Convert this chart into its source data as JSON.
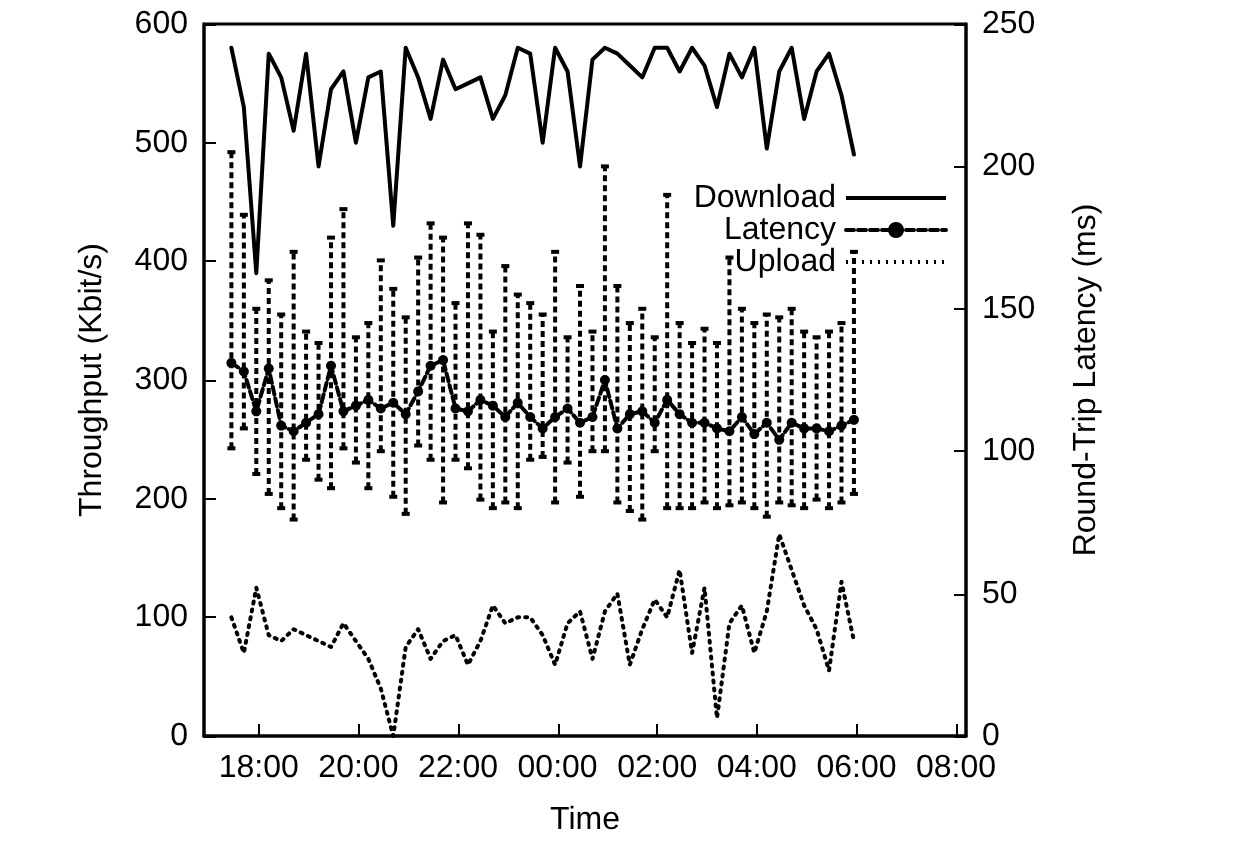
{
  "chart_data": {
    "type": "line",
    "xlabel": "Time",
    "ylabel": "Throughput (Kbit/s)",
    "y2label": "Round-Trip Latency (ms)",
    "x": [
      "2000-01-01T17:27",
      "2000-01-01T17:42",
      "2000-01-01T17:57",
      "2000-01-01T18:12",
      "2000-01-01T18:27",
      "2000-01-01T18:42",
      "2000-01-01T18:57",
      "2000-01-01T19:12",
      "2000-01-01T19:27",
      "2000-01-01T19:42",
      "2000-01-01T19:57",
      "2000-01-01T20:12",
      "2000-01-01T20:27",
      "2000-01-01T20:42",
      "2000-01-01T20:57",
      "2000-01-01T21:12",
      "2000-01-01T21:27",
      "2000-01-01T21:42",
      "2000-01-01T21:57",
      "2000-01-01T22:12",
      "2000-01-01T22:27",
      "2000-01-01T22:42",
      "2000-01-01T22:57",
      "2000-01-01T23:12",
      "2000-01-01T23:27",
      "2000-01-01T23:42",
      "2000-01-01T23:57",
      "2000-01-02T00:12",
      "2000-01-02T00:27",
      "2000-01-02T00:42",
      "2000-01-02T00:57",
      "2000-01-02T01:12",
      "2000-01-02T01:27",
      "2000-01-02T01:42",
      "2000-01-02T01:57",
      "2000-01-02T02:12",
      "2000-01-02T02:27",
      "2000-01-02T02:42",
      "2000-01-02T02:57",
      "2000-01-02T03:12",
      "2000-01-02T03:27",
      "2000-01-02T03:42",
      "2000-01-02T03:57",
      "2000-01-02T04:12",
      "2000-01-02T04:27",
      "2000-01-02T04:42",
      "2000-01-02T04:57",
      "2000-01-02T05:12",
      "2000-01-02T05:27",
      "2000-01-02T05:42",
      "2000-01-02T05:57"
    ],
    "series": [
      {
        "name": "Download",
        "color": "#000000",
        "line_style": "solid",
        "marker": "none",
        "values": [
          580,
          530,
          390,
          575,
          555,
          510,
          575,
          480,
          545,
          560,
          500,
          555,
          560,
          430,
          580,
          555,
          520,
          570,
          545,
          550,
          555,
          520,
          540,
          580,
          575,
          500,
          580,
          560,
          480,
          570,
          580,
          575,
          565,
          555,
          580,
          580,
          560,
          580,
          565,
          530,
          575,
          555,
          580,
          495,
          560,
          580,
          520,
          560,
          575,
          540,
          490
        ]
      },
      {
        "name": "Latency",
        "color": "#000000",
        "axis": "y2",
        "line_style": "dashed",
        "marker": "circle",
        "values": [
          131,
          128,
          114,
          129,
          109,
          107,
          110,
          113,
          130,
          114,
          116,
          118,
          115,
          117,
          113,
          121,
          130,
          132,
          115,
          114,
          118,
          116,
          112,
          117,
          112,
          108,
          112,
          115,
          110,
          112,
          125,
          108,
          113,
          114,
          110,
          118,
          113,
          110,
          110,
          108,
          107,
          112,
          106,
          110,
          104,
          110,
          108,
          108,
          107,
          109,
          111
        ],
        "errors": [
          [
            101,
            205
          ],
          [
            108,
            183
          ],
          [
            92,
            150
          ],
          [
            85,
            160
          ],
          [
            80,
            148
          ],
          [
            76,
            170
          ],
          [
            97,
            142
          ],
          [
            90,
            138
          ],
          [
            87,
            175
          ],
          [
            101,
            185
          ],
          [
            96,
            140
          ],
          [
            87,
            145
          ],
          [
            100,
            167
          ],
          [
            84,
            157
          ],
          [
            78,
            147
          ],
          [
            102,
            168
          ],
          [
            97,
            180
          ],
          [
            82,
            175
          ],
          [
            97,
            152
          ],
          [
            94,
            180
          ],
          [
            83,
            176
          ],
          [
            80,
            142
          ],
          [
            82,
            165
          ],
          [
            80,
            155
          ],
          [
            97,
            152
          ],
          [
            98,
            148
          ],
          [
            82,
            170
          ],
          [
            96,
            140
          ],
          [
            84,
            158
          ],
          [
            100,
            142
          ],
          [
            100,
            200
          ],
          [
            82,
            158
          ],
          [
            79,
            145
          ],
          [
            76,
            150
          ],
          [
            100,
            140
          ],
          [
            80,
            190
          ],
          [
            80,
            145
          ],
          [
            80,
            138
          ],
          [
            82,
            143
          ],
          [
            80,
            138
          ],
          [
            81,
            168
          ],
          [
            82,
            150
          ],
          [
            80,
            145
          ],
          [
            77,
            148
          ],
          [
            82,
            147
          ],
          [
            81,
            150
          ],
          [
            80,
            142
          ],
          [
            83,
            140
          ],
          [
            80,
            142
          ],
          [
            82,
            145
          ],
          [
            85,
            170
          ]
        ]
      },
      {
        "name": "Upload",
        "color": "#000000",
        "line_style": "dotted",
        "marker": "none",
        "values": [
          100,
          70,
          125,
          85,
          80,
          90,
          85,
          80,
          75,
          95,
          80,
          65,
          40,
          0,
          75,
          90,
          65,
          80,
          85,
          60,
          80,
          110,
          95,
          100,
          100,
          85,
          60,
          95,
          105,
          65,
          105,
          120,
          60,
          90,
          115,
          100,
          140,
          70,
          125,
          15,
          95,
          110,
          70,
          105,
          170,
          140,
          110,
          90,
          55,
          130,
          80
        ]
      }
    ],
    "xlim": [
      "2000-01-01T16:54",
      "2000-01-02T08:12"
    ],
    "xticks": [
      {
        "value": "2000-01-01T18:00",
        "label": "18:00"
      },
      {
        "value": "2000-01-01T20:00",
        "label": "20:00"
      },
      {
        "value": "2000-01-01T22:00",
        "label": "22:00"
      },
      {
        "value": "2000-01-02T00:00",
        "label": "00:00"
      },
      {
        "value": "2000-01-02T02:00",
        "label": "02:00"
      },
      {
        "value": "2000-01-02T04:00",
        "label": "04:00"
      },
      {
        "value": "2000-01-02T06:00",
        "label": "06:00"
      },
      {
        "value": "2000-01-02T08:00",
        "label": "08:00"
      }
    ],
    "ylim": [
      0,
      600
    ],
    "yticks": [
      0,
      100,
      200,
      300,
      400,
      500,
      600
    ],
    "y2lim": [
      0,
      250
    ],
    "y2ticks": [
      0,
      50,
      100,
      150,
      200,
      250
    ],
    "grid": false,
    "legend": "top right"
  }
}
